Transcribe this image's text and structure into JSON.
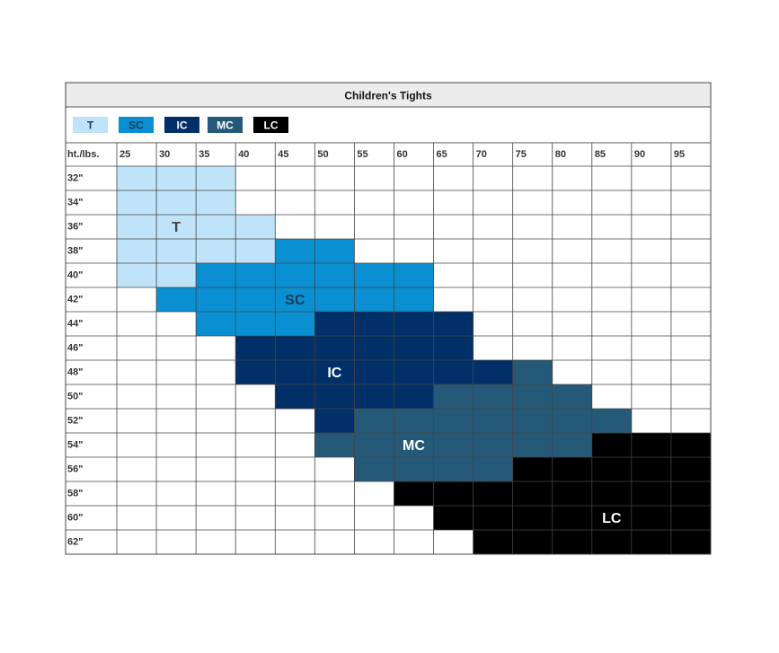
{
  "chart_data": {
    "type": "heatmap",
    "title": "Children's Tights",
    "corner_label": "ht./lbs.",
    "x_labels": [
      "25",
      "30",
      "35",
      "40",
      "45",
      "50",
      "55",
      "60",
      "65",
      "70",
      "75",
      "80",
      "85",
      "90",
      "95"
    ],
    "y_labels": [
      "32\"",
      "34\"",
      "36\"",
      "38\"",
      "40\"",
      "42\"",
      "44\"",
      "46\"",
      "48\"",
      "50\"",
      "52\"",
      "54\"",
      "56\"",
      "58\"",
      "60\"",
      "62\""
    ],
    "sizes": [
      {
        "code": "T",
        "color": "#bfe3f8",
        "text_color": "#222222"
      },
      {
        "code": "SC",
        "color": "#0a90d2",
        "text_color": "#1b3a55"
      },
      {
        "code": "IC",
        "color": "#003067",
        "text_color": "#ffffff"
      },
      {
        "code": "MC",
        "color": "#245a78",
        "text_color": "#ffffff"
      },
      {
        "code": "LC",
        "color": "#000000",
        "text_color": "#ffffff"
      }
    ],
    "rows": [
      {
        "height": "32\"",
        "cells": [
          "T",
          "T",
          "T",
          "",
          "",
          "",
          "",
          "",
          "",
          "",
          "",
          "",
          "",
          "",
          ""
        ]
      },
      {
        "height": "34\"",
        "cells": [
          "T",
          "T",
          "T",
          "",
          "",
          "",
          "",
          "",
          "",
          "",
          "",
          "",
          "",
          "",
          ""
        ]
      },
      {
        "height": "36\"",
        "cells": [
          "T",
          "T",
          "T",
          "T",
          "",
          "",
          "",
          "",
          "",
          "",
          "",
          "",
          "",
          "",
          ""
        ]
      },
      {
        "height": "38\"",
        "cells": [
          "T",
          "T",
          "T",
          "T",
          "SC",
          "SC",
          "",
          "",
          "",
          "",
          "",
          "",
          "",
          "",
          ""
        ]
      },
      {
        "height": "40\"",
        "cells": [
          "T",
          "T",
          "SC",
          "SC",
          "SC",
          "SC",
          "SC",
          "SC",
          "",
          "",
          "",
          "",
          "",
          "",
          ""
        ]
      },
      {
        "height": "42\"",
        "cells": [
          "",
          "SC",
          "SC",
          "SC",
          "SC",
          "SC",
          "SC",
          "SC",
          "",
          "",
          "",
          "",
          "",
          "",
          ""
        ]
      },
      {
        "height": "44\"",
        "cells": [
          "",
          "",
          "SC",
          "SC",
          "SC",
          "IC",
          "IC",
          "IC",
          "IC",
          "",
          "",
          "",
          "",
          "",
          ""
        ]
      },
      {
        "height": "46\"",
        "cells": [
          "",
          "",
          "",
          "IC",
          "IC",
          "IC",
          "IC",
          "IC",
          "IC",
          "",
          "",
          "",
          "",
          "",
          ""
        ]
      },
      {
        "height": "48\"",
        "cells": [
          "",
          "",
          "",
          "IC",
          "IC",
          "IC",
          "IC",
          "IC",
          "IC",
          "IC",
          "MC",
          "",
          "",
          "",
          ""
        ]
      },
      {
        "height": "50\"",
        "cells": [
          "",
          "",
          "",
          "",
          "IC",
          "IC",
          "IC",
          "IC",
          "MC",
          "MC",
          "MC",
          "MC",
          "",
          "",
          ""
        ]
      },
      {
        "height": "52\"",
        "cells": [
          "",
          "",
          "",
          "",
          "",
          "IC",
          "MC",
          "MC",
          "MC",
          "MC",
          "MC",
          "MC",
          "MC",
          "",
          ""
        ]
      },
      {
        "height": "54\"",
        "cells": [
          "",
          "",
          "",
          "",
          "",
          "MC",
          "MC",
          "MC",
          "MC",
          "MC",
          "MC",
          "MC",
          "LC",
          "LC",
          "LC"
        ]
      },
      {
        "height": "56\"",
        "cells": [
          "",
          "",
          "",
          "",
          "",
          "",
          "MC",
          "MC",
          "MC",
          "MC",
          "LC",
          "LC",
          "LC",
          "LC",
          "LC"
        ]
      },
      {
        "height": "58\"",
        "cells": [
          "",
          "",
          "",
          "",
          "",
          "",
          "",
          "LC",
          "LC",
          "LC",
          "LC",
          "LC",
          "LC",
          "LC",
          "LC"
        ]
      },
      {
        "height": "60\"",
        "cells": [
          "",
          "",
          "",
          "",
          "",
          "",
          "",
          "",
          "LC",
          "LC",
          "LC",
          "LC",
          "LC",
          "LC",
          "LC"
        ]
      },
      {
        "height": "62\"",
        "cells": [
          "",
          "",
          "",
          "",
          "",
          "",
          "",
          "",
          "",
          "LC",
          "LC",
          "LC",
          "LC",
          "LC",
          "LC"
        ]
      }
    ],
    "region_labels": [
      {
        "code": "T",
        "column": "30",
        "row": "36\""
      },
      {
        "code": "SC",
        "column": "45",
        "row": "42\""
      },
      {
        "code": "IC",
        "column": "50",
        "row": "48\""
      },
      {
        "code": "MC",
        "column": "60",
        "row": "54\""
      },
      {
        "code": "LC",
        "column": "85",
        "row": "60\""
      }
    ],
    "grid": true,
    "legend_position": "top-left"
  }
}
